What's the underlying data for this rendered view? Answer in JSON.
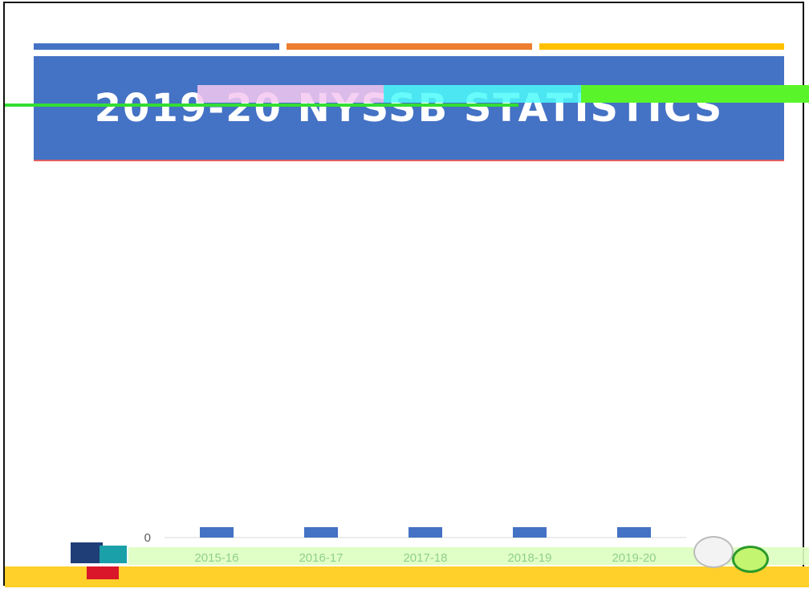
{
  "header": {
    "title": "2019-20 NYSSB STATISTICS",
    "stripe_colors": [
      "#4472c4",
      "#ed7d31",
      "#ffc000"
    ],
    "banner_color": "#4472c4"
  },
  "chart_data": {
    "type": "bar",
    "categories": [
      "2015-16",
      "2016-17",
      "2017-18",
      "2018-19",
      "2019-20"
    ],
    "values": [
      0,
      0,
      0,
      0,
      0
    ],
    "ylim": [
      0,
      1
    ],
    "yticks": [
      0
    ],
    "bar_color": "#4472c4",
    "title": "",
    "xlabel": "",
    "ylabel": ""
  }
}
